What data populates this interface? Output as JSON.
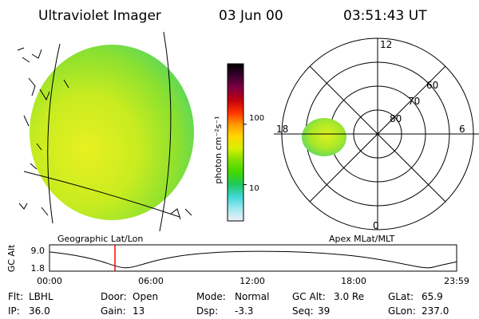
{
  "header": {
    "instrument": "Ultraviolet Imager",
    "date": "03 Jun 00",
    "time": "03:51:43 UT"
  },
  "panels": {
    "left_label": "Geographic Lat/Lon",
    "right_label": "Apex MLat/MLT"
  },
  "colorbar": {
    "unit_label": "photon cm⁻²s⁻¹",
    "tick_labels": [
      "100",
      "10"
    ],
    "log_max": 3,
    "log_min": 0.4,
    "colors": [
      "#000000",
      "#3a0030",
      "#800040",
      "#c00010",
      "#ff3000",
      "#ff9800",
      "#ffd800",
      "#d8f000",
      "#80e000",
      "#40d800",
      "#20c860",
      "#40d8d8",
      "#a0e8f0",
      "#f0f0f8"
    ]
  },
  "polar": {
    "mlt_labels": [
      "12",
      "6",
      "0",
      "18"
    ],
    "mlat_labels": [
      "60",
      "70",
      "80"
    ],
    "mlat_values": [
      60,
      70,
      80
    ]
  },
  "altitude_plot": {
    "ylabel": "GC Alt",
    "y_ticks": [
      "9.0",
      "1.8"
    ],
    "ylim": [
      1.8,
      9.0
    ],
    "x_ticks": [
      "00:00",
      "06:00",
      "12:00",
      "18:00",
      "23:59"
    ],
    "x_range_hours": [
      0,
      24
    ],
    "marker_hour": 3.86,
    "marker_color": "#ff0000",
    "orbit_points": [
      [
        0.0,
        8.7
      ],
      [
        1.0,
        7.9
      ],
      [
        2.0,
        6.7
      ],
      [
        3.0,
        5.0
      ],
      [
        3.7,
        3.3
      ],
      [
        4.5,
        1.8
      ],
      [
        5.5,
        3.6
      ],
      [
        6.5,
        5.6
      ],
      [
        8.0,
        7.5
      ],
      [
        10.0,
        8.7
      ],
      [
        12.0,
        9.0
      ],
      [
        14.0,
        8.9
      ],
      [
        16.0,
        8.3
      ],
      [
        18.0,
        7.1
      ],
      [
        19.5,
        5.6
      ],
      [
        21.0,
        3.6
      ],
      [
        22.3,
        1.8
      ],
      [
        23.0,
        3.2
      ],
      [
        23.98,
        4.6
      ]
    ]
  },
  "footer": [
    {
      "label": "Flt:",
      "value": "LBHL"
    },
    {
      "label": "Door:",
      "value": "Open"
    },
    {
      "label": "Mode:",
      "value": "Normal"
    },
    {
      "label": "GC Alt:",
      "value": "3.0 Re"
    },
    {
      "label": "GLat:",
      "value": "65.9"
    },
    {
      "label": "IP:",
      "value": "36.0"
    },
    {
      "label": "Gain:",
      "value": "13"
    },
    {
      "label": "Dsp:",
      "value": "-3.3"
    },
    {
      "label": "Seq:",
      "value": "39"
    },
    {
      "label": "GLon:",
      "value": "237.0"
    }
  ]
}
